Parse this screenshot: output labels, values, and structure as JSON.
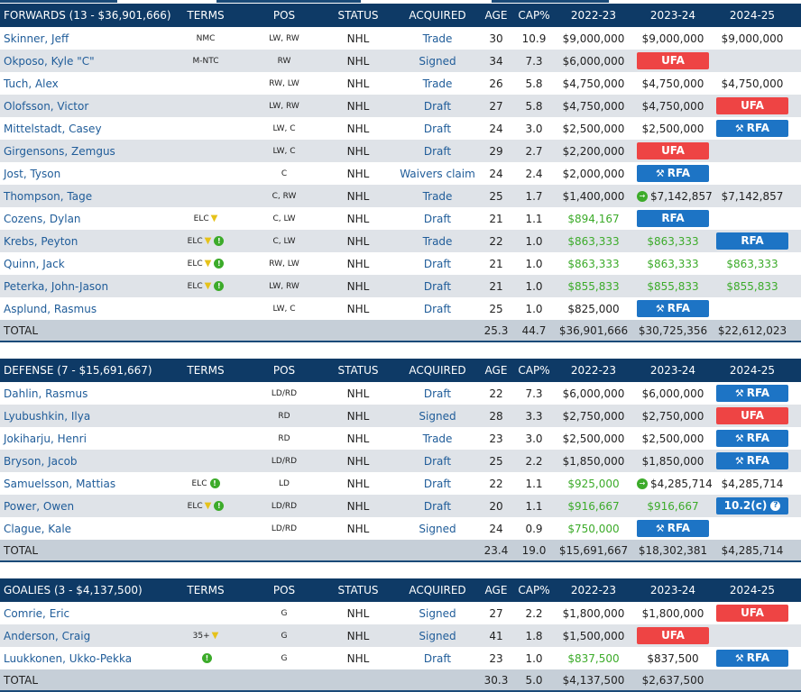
{
  "headers": {
    "terms": "TERMS",
    "pos": "POS",
    "status": "STATUS",
    "acquired": "ACQUIRED",
    "age": "AGE",
    "cap": "CAP%",
    "y1": "2022-23",
    "y2": "2023-24",
    "y3": "2024-25"
  },
  "sections": [
    {
      "title": "FORWARDS (13 - $36,901,666)",
      "players": [
        {
          "name": "Skinner, Jeff",
          "terms": "NMC",
          "pos": "LW, RW",
          "status": "NHL",
          "acquired": "Trade",
          "age": "30",
          "cap": "10.9",
          "y1": "$9,000,000",
          "y2": "$9,000,000",
          "y3": "$9,000,000"
        },
        {
          "name": "Okposo, Kyle \"C\"",
          "terms": "M-NTC",
          "pos": "RW",
          "status": "NHL",
          "acquired": "Signed",
          "age": "34",
          "cap": "7.3",
          "y1": "$6,000,000",
          "y2": {
            "pill": "ufa",
            "text": "UFA"
          },
          "y3": ""
        },
        {
          "name": "Tuch, Alex",
          "terms": "",
          "pos": "RW, LW",
          "status": "NHL",
          "acquired": "Trade",
          "age": "26",
          "cap": "5.8",
          "y1": "$4,750,000",
          "y2": "$4,750,000",
          "y3": "$4,750,000"
        },
        {
          "name": "Olofsson, Victor",
          "terms": "",
          "pos": "LW, RW",
          "status": "NHL",
          "acquired": "Draft",
          "age": "27",
          "cap": "5.8",
          "y1": "$4,750,000",
          "y2": "$4,750,000",
          "y3": {
            "pill": "ufa",
            "text": "UFA"
          }
        },
        {
          "name": "Mittelstadt, Casey",
          "terms": "",
          "pos": "LW, C",
          "status": "NHL",
          "acquired": "Draft",
          "age": "24",
          "cap": "3.0",
          "y1": "$2,500,000",
          "y2": "$2,500,000",
          "y3": {
            "pill": "rfa",
            "text": "RFA",
            "hammer": true
          }
        },
        {
          "name": "Girgensons, Zemgus",
          "terms": "",
          "pos": "LW, C",
          "status": "NHL",
          "acquired": "Draft",
          "age": "29",
          "cap": "2.7",
          "y1": "$2,200,000",
          "y2": {
            "pill": "ufa",
            "text": "UFA"
          },
          "y3": ""
        },
        {
          "name": "Jost, Tyson",
          "terms": "",
          "pos": "C",
          "status": "NHL",
          "acquired": "Waivers claim",
          "age": "24",
          "cap": "2.4",
          "y1": "$2,000,000",
          "y2": {
            "pill": "rfa",
            "text": "RFA",
            "hammer": true
          },
          "y3": ""
        },
        {
          "name": "Thompson, Tage",
          "terms": "",
          "pos": "C, RW",
          "status": "NHL",
          "acquired": "Trade",
          "age": "25",
          "cap": "1.7",
          "y1": "$1,400,000",
          "y2": {
            "arrow": true,
            "text": "$7,142,857"
          },
          "y3": "$7,142,857"
        },
        {
          "name": "Cozens, Dylan",
          "terms": "ELC",
          "trophy": true,
          "pos": "C, LW",
          "status": "NHL",
          "acquired": "Draft",
          "age": "21",
          "cap": "1.1",
          "y1": {
            "green": true,
            "text": "$894,167"
          },
          "y2": {
            "pill": "rfa",
            "text": "RFA"
          },
          "y3": ""
        },
        {
          "name": "Krebs, Peyton",
          "terms": "ELC",
          "trophy": true,
          "dot": true,
          "pos": "C, LW",
          "status": "NHL",
          "acquired": "Trade",
          "age": "22",
          "cap": "1.0",
          "y1": {
            "green": true,
            "text": "$863,333"
          },
          "y2": {
            "green": true,
            "text": "$863,333"
          },
          "y3": {
            "pill": "rfa",
            "text": "RFA"
          }
        },
        {
          "name": "Quinn, Jack",
          "terms": "ELC",
          "trophy": true,
          "dot": true,
          "pos": "RW, LW",
          "status": "NHL",
          "acquired": "Draft",
          "age": "21",
          "cap": "1.0",
          "y1": {
            "green": true,
            "text": "$863,333"
          },
          "y2": {
            "green": true,
            "text": "$863,333"
          },
          "y3": {
            "green": true,
            "text": "$863,333"
          }
        },
        {
          "name": "Peterka, John-Jason",
          "terms": "ELC",
          "trophy": true,
          "dot": true,
          "pos": "LW, RW",
          "status": "NHL",
          "acquired": "Draft",
          "age": "21",
          "cap": "1.0",
          "y1": {
            "green": true,
            "text": "$855,833"
          },
          "y2": {
            "green": true,
            "text": "$855,833"
          },
          "y3": {
            "green": true,
            "text": "$855,833"
          }
        },
        {
          "name": "Asplund, Rasmus",
          "terms": "",
          "pos": "LW, C",
          "status": "NHL",
          "acquired": "Draft",
          "age": "25",
          "cap": "1.0",
          "y1": "$825,000",
          "y2": {
            "pill": "rfa",
            "text": "RFA",
            "hammer": true
          },
          "y3": ""
        }
      ],
      "total": {
        "label": "TOTAL",
        "age": "25.3",
        "cap": "44.7",
        "y1": "$36,901,666",
        "y2": "$30,725,356",
        "y3": "$22,612,023"
      }
    },
    {
      "title": "DEFENSE (7 - $15,691,667)",
      "players": [
        {
          "name": "Dahlin, Rasmus",
          "terms": "",
          "pos": "LD/RD",
          "status": "NHL",
          "acquired": "Draft",
          "age": "22",
          "cap": "7.3",
          "y1": "$6,000,000",
          "y2": "$6,000,000",
          "y3": {
            "pill": "rfa",
            "text": "RFA",
            "hammer": true
          }
        },
        {
          "name": "Lyubushkin, Ilya",
          "terms": "",
          "pos": "RD",
          "status": "NHL",
          "acquired": "Signed",
          "age": "28",
          "cap": "3.3",
          "y1": "$2,750,000",
          "y2": "$2,750,000",
          "y3": {
            "pill": "ufa",
            "text": "UFA"
          }
        },
        {
          "name": "Jokiharju, Henri",
          "terms": "",
          "pos": "RD",
          "status": "NHL",
          "acquired": "Trade",
          "age": "23",
          "cap": "3.0",
          "y1": "$2,500,000",
          "y2": "$2,500,000",
          "y3": {
            "pill": "rfa",
            "text": "RFA",
            "hammer": true
          }
        },
        {
          "name": "Bryson, Jacob",
          "terms": "",
          "pos": "LD/RD",
          "status": "NHL",
          "acquired": "Draft",
          "age": "25",
          "cap": "2.2",
          "y1": "$1,850,000",
          "y2": "$1,850,000",
          "y3": {
            "pill": "rfa",
            "text": "RFA",
            "hammer": true
          }
        },
        {
          "name": "Samuelsson, Mattias",
          "terms": "ELC",
          "dot": true,
          "pos": "LD",
          "status": "NHL",
          "acquired": "Draft",
          "age": "22",
          "cap": "1.1",
          "y1": {
            "green": true,
            "text": "$925,000"
          },
          "y2": {
            "arrow": true,
            "text": "$4,285,714"
          },
          "y3": "$4,285,714"
        },
        {
          "name": "Power, Owen",
          "terms": "ELC",
          "trophy": true,
          "dot": true,
          "pos": "LD/RD",
          "status": "NHL",
          "acquired": "Draft",
          "age": "20",
          "cap": "1.1",
          "y1": {
            "green": true,
            "text": "$916,667"
          },
          "y2": {
            "green": true,
            "text": "$916,667"
          },
          "y3": {
            "pill": "info",
            "text": "10.2(c)",
            "q": true
          }
        },
        {
          "name": "Clague, Kale",
          "terms": "",
          "pos": "LD/RD",
          "status": "NHL",
          "acquired": "Signed",
          "age": "24",
          "cap": "0.9",
          "y1": {
            "green": true,
            "text": "$750,000"
          },
          "y2": {
            "pill": "rfa",
            "text": "RFA",
            "hammer": true
          },
          "y3": ""
        }
      ],
      "total": {
        "label": "TOTAL",
        "age": "23.4",
        "cap": "19.0",
        "y1": "$15,691,667",
        "y2": "$18,302,381",
        "y3": "$4,285,714"
      }
    },
    {
      "title": "GOALIES (3 - $4,137,500)",
      "players": [
        {
          "name": "Comrie, Eric",
          "terms": "",
          "pos": "G",
          "status": "NHL",
          "acquired": "Signed",
          "age": "27",
          "cap": "2.2",
          "y1": "$1,800,000",
          "y2": "$1,800,000",
          "y3": {
            "pill": "ufa",
            "text": "UFA"
          }
        },
        {
          "name": "Anderson, Craig",
          "terms": "35+",
          "trophy": true,
          "pos": "G",
          "status": "NHL",
          "acquired": "Signed",
          "age": "41",
          "cap": "1.8",
          "y1": "$1,500,000",
          "y2": {
            "pill": "ufa",
            "text": "UFA"
          },
          "y3": ""
        },
        {
          "name": "Luukkonen, Ukko-Pekka",
          "terms": "",
          "dot": true,
          "pos": "G",
          "status": "NHL",
          "acquired": "Draft",
          "age": "23",
          "cap": "1.0",
          "y1": {
            "green": true,
            "text": "$837,500"
          },
          "y2": "$837,500",
          "y3": {
            "pill": "rfa",
            "text": "RFA",
            "hammer": true
          }
        }
      ],
      "total": {
        "label": "TOTAL",
        "age": "30.3",
        "cap": "5.0",
        "y1": "$4,137,500",
        "y2": "$2,637,500",
        "y3": ""
      }
    }
  ],
  "colors": {
    "header": "#0e3a66",
    "ufa": "#ee4444",
    "rfa": "#1d74c5",
    "green": "#3cab2a",
    "link": "#1f5c99"
  },
  "icons": {
    "trophy": "trophy-icon",
    "dot": "info-dot-icon",
    "hammer": "gavel-icon",
    "arrow": "extension-arrow-icon",
    "question": "question-icon"
  }
}
